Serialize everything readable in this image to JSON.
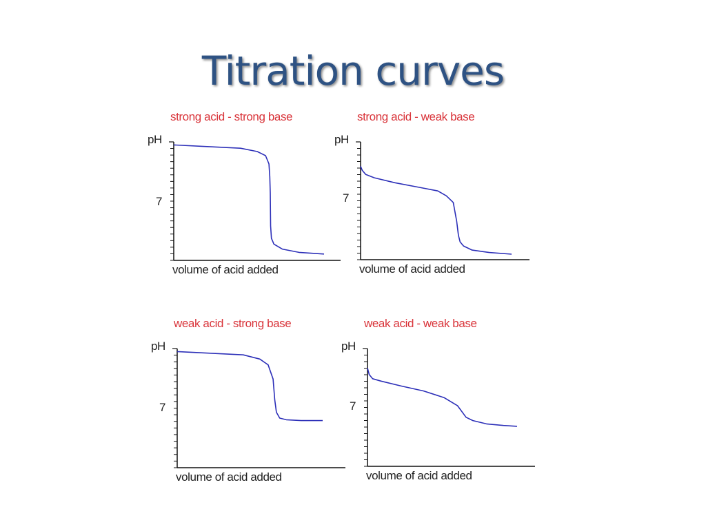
{
  "slide": {
    "title": "Titration curves"
  },
  "chart_data": [
    {
      "type": "line",
      "title": "strong acid - strong base",
      "ylabel": "pH",
      "xlabel": "volume of acid added",
      "yticks": [
        "7"
      ],
      "ylim": [
        0,
        14
      ],
      "xlim": [
        0,
        1
      ],
      "grid": false,
      "series": [
        {
          "color": "#2c2fb8",
          "x": [
            0,
            0.2,
            0.4,
            0.5,
            0.55,
            0.57,
            0.575,
            0.578,
            0.58,
            0.585,
            0.6,
            0.65,
            0.75,
            0.9
          ],
          "y": [
            13.8,
            13.6,
            13.4,
            13.0,
            12.5,
            11.5,
            10.0,
            8.0,
            4.0,
            2.5,
            1.8,
            1.2,
            0.8,
            0.6
          ]
        }
      ]
    },
    {
      "type": "line",
      "title": "strong acid - weak base",
      "ylabel": "pH",
      "xlabel": "volume of acid added",
      "yticks": [
        "7"
      ],
      "ylim": [
        0,
        14
      ],
      "xlim": [
        0,
        1
      ],
      "grid": false,
      "series": [
        {
          "color": "#2c2fb8",
          "x": [
            0,
            0.01,
            0.03,
            0.08,
            0.2,
            0.35,
            0.45,
            0.5,
            0.54,
            0.56,
            0.57,
            0.58,
            0.6,
            0.65,
            0.75,
            0.88
          ],
          "y": [
            11.2,
            10.7,
            10.2,
            9.8,
            9.2,
            8.6,
            8.2,
            7.6,
            6.8,
            4.5,
            2.8,
            2.0,
            1.5,
            1.0,
            0.7,
            0.5
          ]
        }
      ]
    },
    {
      "type": "line",
      "title": "weak acid - strong base",
      "ylabel": "pH",
      "xlabel": "volume of acid added",
      "yticks": [
        "7"
      ],
      "ylim": [
        0,
        14
      ],
      "xlim": [
        0,
        1
      ],
      "grid": false,
      "series": [
        {
          "color": "#2c2fb8",
          "x": [
            0,
            0.2,
            0.4,
            0.5,
            0.55,
            0.58,
            0.59,
            0.6,
            0.62,
            0.66,
            0.75,
            0.88
          ],
          "y": [
            13.8,
            13.6,
            13.4,
            12.9,
            12.2,
            10.5,
            8.0,
            6.5,
            5.8,
            5.6,
            5.5,
            5.5
          ]
        }
      ]
    },
    {
      "type": "line",
      "title": "weak acid - weak base",
      "ylabel": "pH",
      "xlabel": "volume of acid added",
      "yticks": [
        "7"
      ],
      "ylim": [
        0,
        14
      ],
      "xlim": [
        0,
        1
      ],
      "grid": false,
      "series": [
        {
          "color": "#2c2fb8",
          "x": [
            0,
            0.01,
            0.03,
            0.08,
            0.2,
            0.33,
            0.45,
            0.53,
            0.58,
            0.62,
            0.7,
            0.8,
            0.88
          ],
          "y": [
            11.8,
            11.0,
            10.5,
            10.2,
            9.6,
            9.0,
            8.2,
            7.2,
            5.8,
            5.4,
            5.0,
            4.8,
            4.7
          ]
        }
      ]
    }
  ]
}
